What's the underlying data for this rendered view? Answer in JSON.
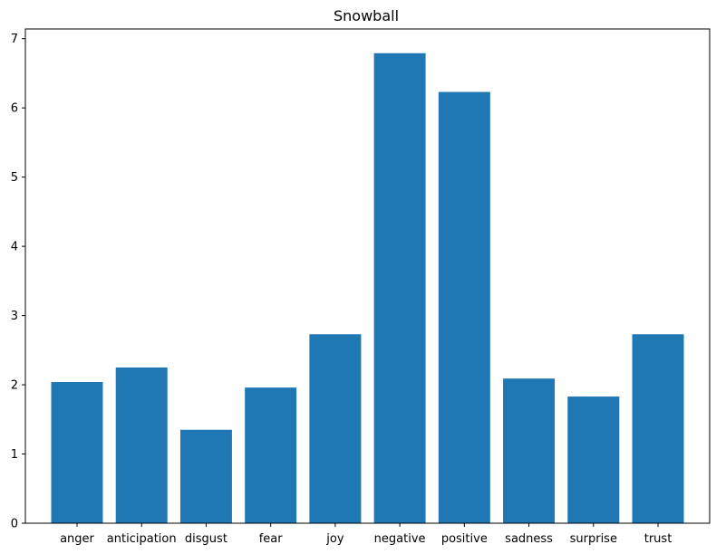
{
  "chart_data": {
    "type": "bar",
    "title": "Snowball",
    "xlabel": "",
    "ylabel": "",
    "categories": [
      "anger",
      "anticipation",
      "disgust",
      "fear",
      "joy",
      "negative",
      "positive",
      "sadness",
      "surprise",
      "trust"
    ],
    "values": [
      2.04,
      2.25,
      1.35,
      1.96,
      2.73,
      6.79,
      6.23,
      2.09,
      1.83,
      2.73
    ],
    "ylim": [
      0,
      7.14
    ],
    "yticks": [
      0,
      1,
      2,
      3,
      4,
      5,
      6,
      7
    ],
    "bar_color": "#1f77b4",
    "grid": false,
    "legend": "none"
  }
}
